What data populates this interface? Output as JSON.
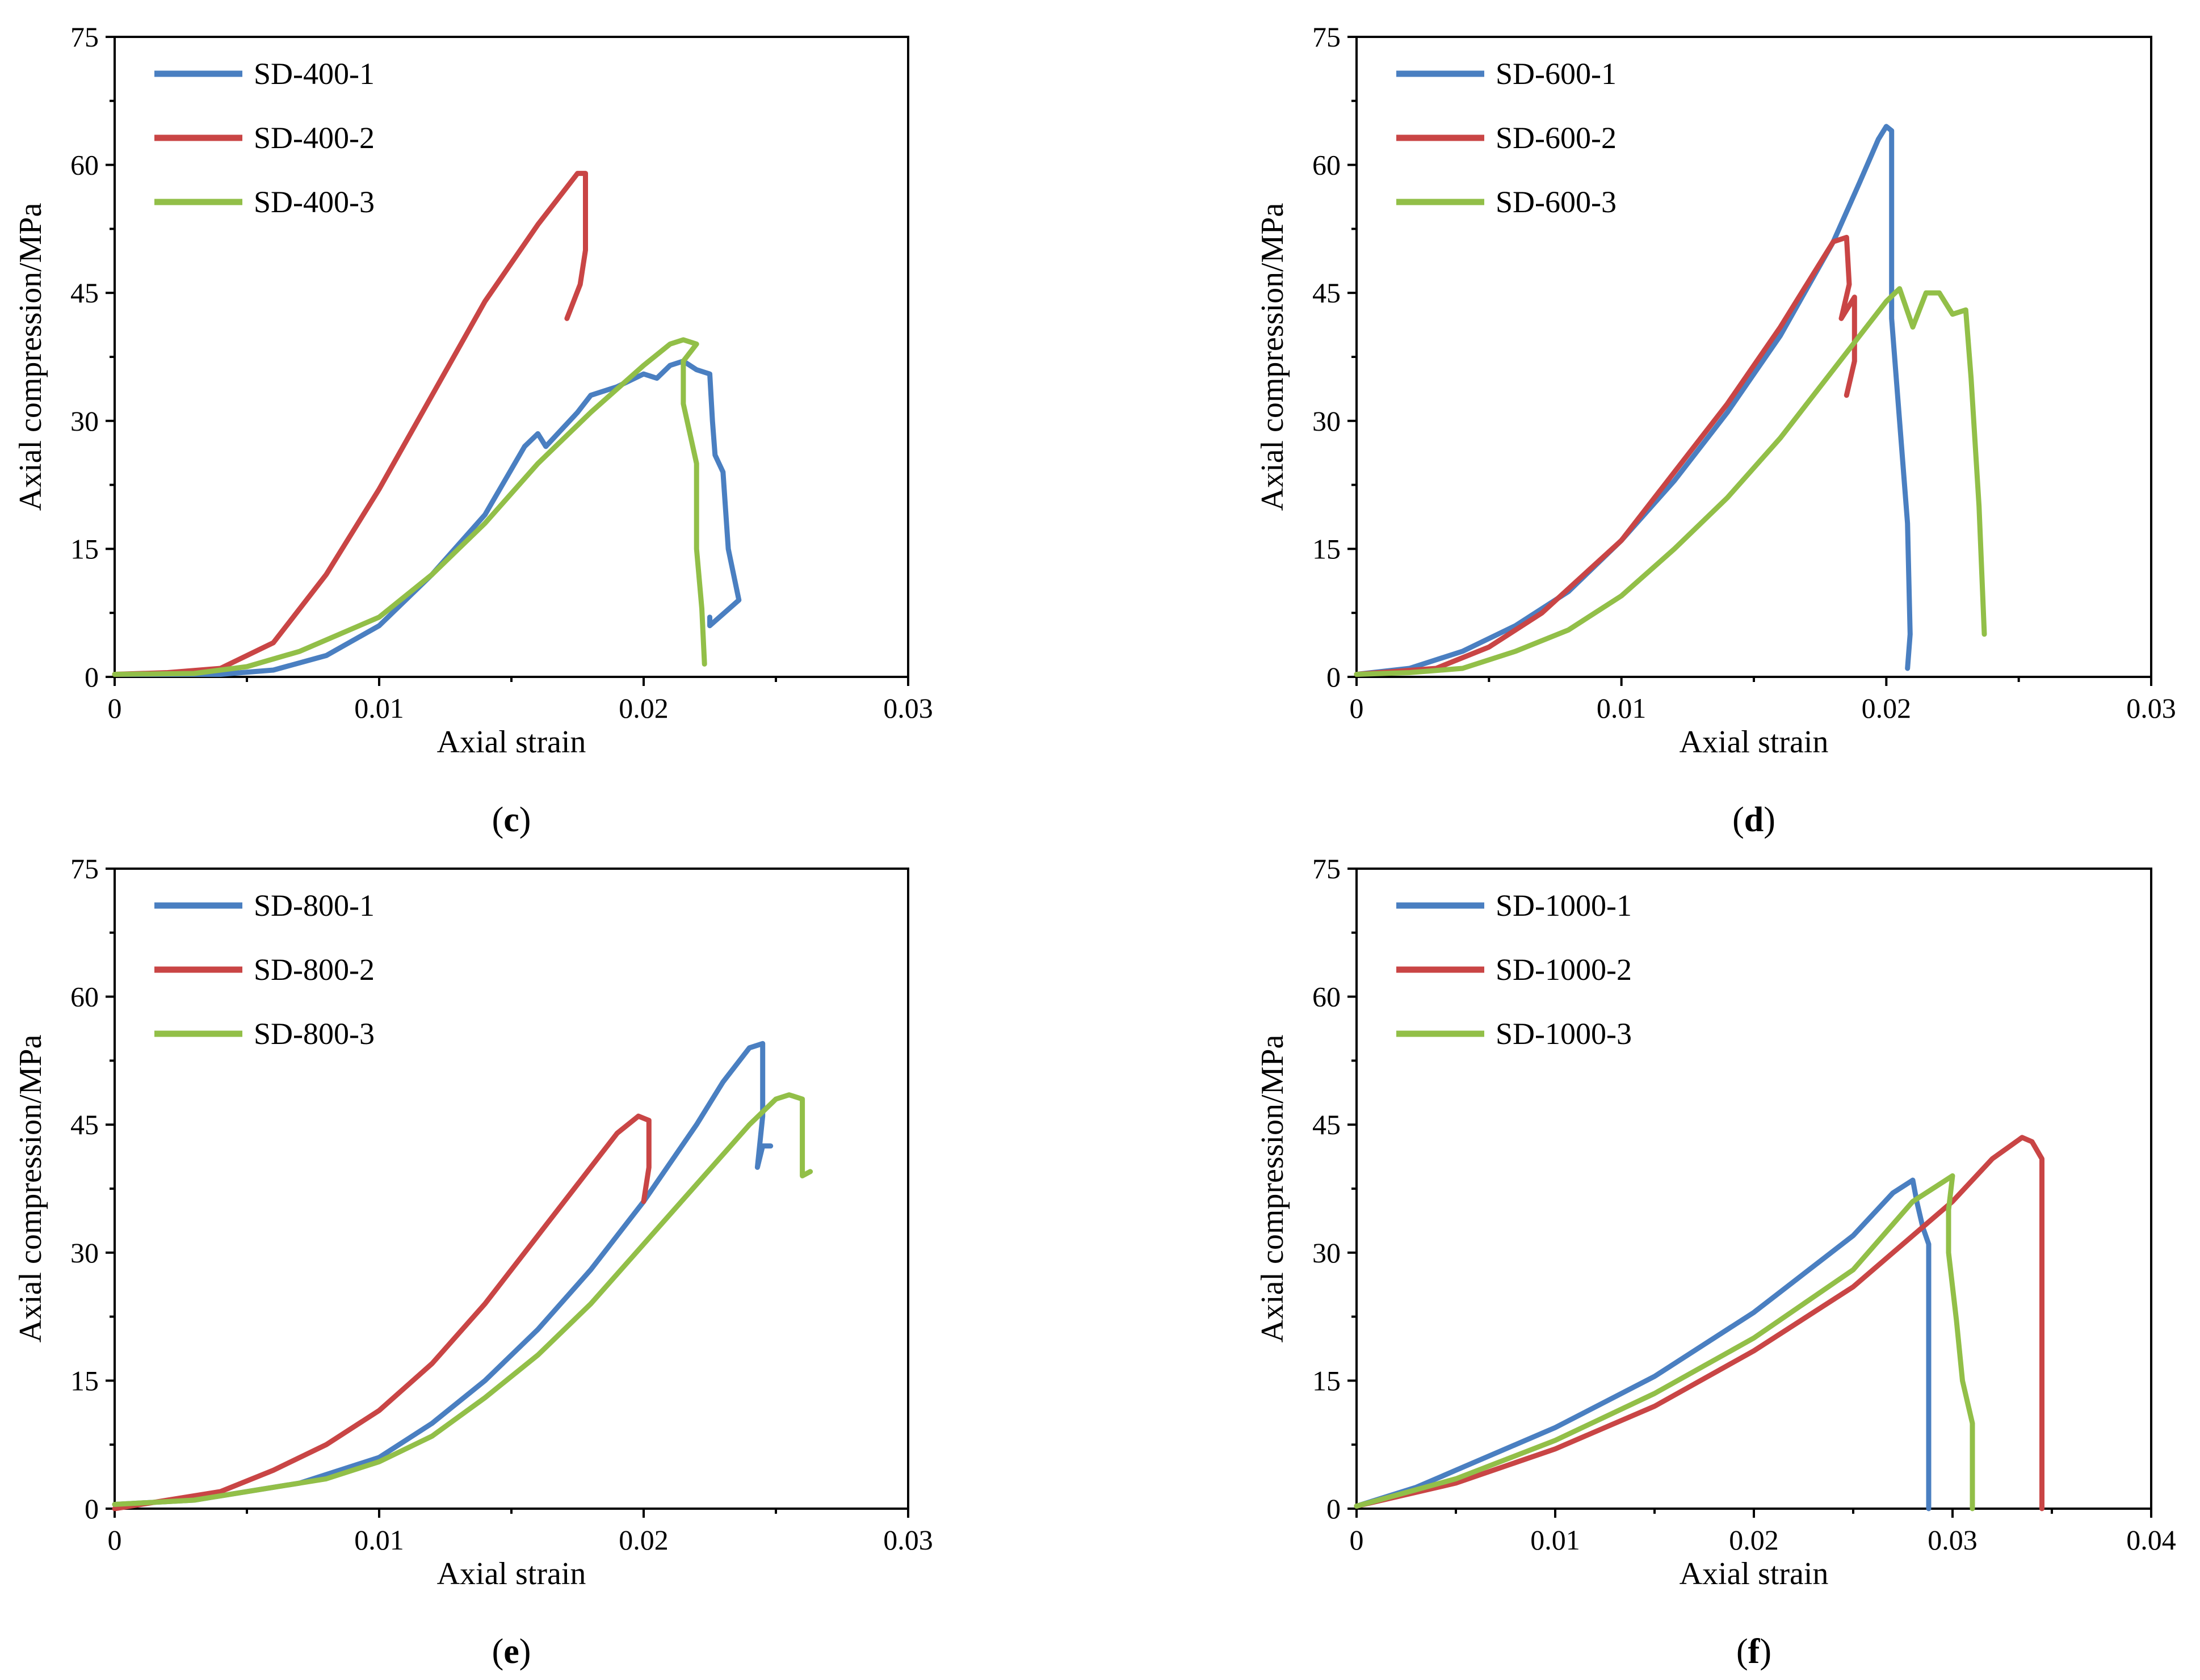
{
  "colors": {
    "series1": "#4a7fc1",
    "series2": "#c94545",
    "series3": "#92bf48",
    "axis": "#000000"
  },
  "chart_data": [
    {
      "type": "line",
      "panel_label": "c",
      "xlabel": "Axial strain",
      "ylabel": "Axial compression/MPa",
      "xlim": [
        0,
        0.03
      ],
      "ylim": [
        0,
        75
      ],
      "xticks": [
        0,
        0.01,
        0.02,
        0.03
      ],
      "xtick_labels": [
        "0",
        "0.01",
        "0.02",
        "0.03"
      ],
      "yticks": [
        0,
        15,
        30,
        45,
        60,
        75
      ],
      "ytick_labels": [
        "0",
        "15",
        "30",
        "45",
        "60",
        "75"
      ],
      "legend_position": "top-left",
      "series": [
        {
          "name": "SD-400-1",
          "color_key": "series1",
          "points": [
            [
              0,
              0.3
            ],
            [
              0.004,
              0.3
            ],
            [
              0.006,
              0.8
            ],
            [
              0.008,
              2.5
            ],
            [
              0.01,
              6
            ],
            [
              0.012,
              12
            ],
            [
              0.014,
              19
            ],
            [
              0.0155,
              27
            ],
            [
              0.016,
              28.5
            ],
            [
              0.0163,
              27
            ],
            [
              0.0175,
              31
            ],
            [
              0.018,
              33
            ],
            [
              0.019,
              34
            ],
            [
              0.02,
              35.5
            ],
            [
              0.0205,
              35
            ],
            [
              0.021,
              36.5
            ],
            [
              0.0215,
              37
            ],
            [
              0.022,
              36
            ],
            [
              0.0225,
              35.5
            ],
            [
              0.0226,
              30
            ],
            [
              0.0227,
              26
            ],
            [
              0.023,
              24
            ],
            [
              0.0232,
              15
            ],
            [
              0.0236,
              9
            ],
            [
              0.0225,
              6
            ],
            [
              0.0225,
              7
            ]
          ]
        },
        {
          "name": "SD-400-2",
          "color_key": "series2",
          "points": [
            [
              0,
              0.3
            ],
            [
              0.002,
              0.5
            ],
            [
              0.004,
              1
            ],
            [
              0.006,
              4
            ],
            [
              0.008,
              12
            ],
            [
              0.01,
              22
            ],
            [
              0.012,
              33
            ],
            [
              0.014,
              44
            ],
            [
              0.016,
              53
            ],
            [
              0.017,
              57
            ],
            [
              0.0175,
              59
            ],
            [
              0.0178,
              59
            ],
            [
              0.0178,
              55
            ],
            [
              0.0178,
              50
            ],
            [
              0.0176,
              46
            ],
            [
              0.0171,
              42
            ]
          ]
        },
        {
          "name": "SD-400-3",
          "color_key": "series3",
          "points": [
            [
              0,
              0.3
            ],
            [
              0.003,
              0.4
            ],
            [
              0.005,
              1.2
            ],
            [
              0.007,
              3
            ],
            [
              0.01,
              7
            ],
            [
              0.012,
              12
            ],
            [
              0.014,
              18
            ],
            [
              0.016,
              25
            ],
            [
              0.018,
              31
            ],
            [
              0.02,
              36.5
            ],
            [
              0.021,
              39
            ],
            [
              0.0215,
              39.5
            ],
            [
              0.022,
              39
            ],
            [
              0.0215,
              37
            ],
            [
              0.0215,
              32
            ],
            [
              0.022,
              25
            ],
            [
              0.022,
              15
            ],
            [
              0.0222,
              8
            ],
            [
              0.0223,
              1.5
            ]
          ]
        }
      ]
    },
    {
      "type": "line",
      "panel_label": "d",
      "xlabel": "Axial strain",
      "ylabel": "Axial compression/MPa",
      "xlim": [
        0,
        0.03
      ],
      "ylim": [
        0,
        75
      ],
      "xticks": [
        0,
        0.01,
        0.02,
        0.03
      ],
      "xtick_labels": [
        "0",
        "0.01",
        "0.02",
        "0.03"
      ],
      "yticks": [
        0,
        15,
        30,
        45,
        60,
        75
      ],
      "ytick_labels": [
        "0",
        "15",
        "30",
        "45",
        "60",
        "75"
      ],
      "legend_position": "top-left",
      "series": [
        {
          "name": "SD-600-1",
          "color_key": "series1",
          "points": [
            [
              0,
              0.3
            ],
            [
              0.002,
              1
            ],
            [
              0.004,
              3
            ],
            [
              0.006,
              6
            ],
            [
              0.008,
              10
            ],
            [
              0.01,
              16
            ],
            [
              0.012,
              23
            ],
            [
              0.014,
              31
            ],
            [
              0.016,
              40
            ],
            [
              0.018,
              51
            ],
            [
              0.019,
              58
            ],
            [
              0.0197,
              63
            ],
            [
              0.02,
              64.5
            ],
            [
              0.0202,
              64
            ],
            [
              0.0202,
              55
            ],
            [
              0.0202,
              42
            ],
            [
              0.0205,
              30
            ],
            [
              0.0208,
              18
            ],
            [
              0.0209,
              5
            ],
            [
              0.0208,
              1
            ]
          ]
        },
        {
          "name": "SD-600-2",
          "color_key": "series2",
          "points": [
            [
              0,
              0.3
            ],
            [
              0.003,
              1
            ],
            [
              0.005,
              3.5
            ],
            [
              0.007,
              7.5
            ],
            [
              0.01,
              16
            ],
            [
              0.012,
              24
            ],
            [
              0.014,
              32
            ],
            [
              0.016,
              41
            ],
            [
              0.017,
              46
            ],
            [
              0.018,
              51
            ],
            [
              0.0185,
              51.5
            ],
            [
              0.0186,
              46
            ],
            [
              0.0183,
              42
            ],
            [
              0.0188,
              44.5
            ],
            [
              0.0188,
              37
            ],
            [
              0.0185,
              33
            ]
          ]
        },
        {
          "name": "SD-600-3",
          "color_key": "series3",
          "points": [
            [
              0,
              0.3
            ],
            [
              0.002,
              0.5
            ],
            [
              0.004,
              1
            ],
            [
              0.006,
              3
            ],
            [
              0.008,
              5.5
            ],
            [
              0.01,
              9.5
            ],
            [
              0.012,
              15
            ],
            [
              0.014,
              21
            ],
            [
              0.016,
              28
            ],
            [
              0.018,
              36
            ],
            [
              0.019,
              40
            ],
            [
              0.02,
              44
            ],
            [
              0.0205,
              45.5
            ],
            [
              0.021,
              41
            ],
            [
              0.0215,
              45
            ],
            [
              0.022,
              45
            ],
            [
              0.0225,
              42.5
            ],
            [
              0.023,
              43
            ],
            [
              0.0232,
              35
            ],
            [
              0.0235,
              20
            ],
            [
              0.0237,
              5
            ]
          ]
        }
      ]
    },
    {
      "type": "line",
      "panel_label": "e",
      "xlabel": "Axial strain",
      "ylabel": "Axial compression/MPa",
      "xlim": [
        0,
        0.03
      ],
      "ylim": [
        0,
        75
      ],
      "xticks": [
        0,
        0.01,
        0.02,
        0.03
      ],
      "xtick_labels": [
        "0",
        "0.01",
        "0.02",
        "0.03"
      ],
      "yticks": [
        0,
        15,
        30,
        45,
        60,
        75
      ],
      "ytick_labels": [
        "0",
        "15",
        "30",
        "45",
        "60",
        "75"
      ],
      "legend_position": "top-left",
      "series": [
        {
          "name": "SD-800-1",
          "color_key": "series1",
          "points": [
            [
              0,
              0.5
            ],
            [
              0.003,
              1
            ],
            [
              0.005,
              2
            ],
            [
              0.007,
              3
            ],
            [
              0.01,
              6
            ],
            [
              0.012,
              10
            ],
            [
              0.014,
              15
            ],
            [
              0.016,
              21
            ],
            [
              0.018,
              28
            ],
            [
              0.02,
              36
            ],
            [
              0.022,
              45
            ],
            [
              0.023,
              50
            ],
            [
              0.024,
              54
            ],
            [
              0.0245,
              54.5
            ],
            [
              0.0245,
              46
            ],
            [
              0.0243,
              40
            ],
            [
              0.0245,
              42.5
            ],
            [
              0.0248,
              42.5
            ]
          ]
        },
        {
          "name": "SD-800-2",
          "color_key": "series2",
          "points": [
            [
              0,
              0
            ],
            [
              0.002,
              1
            ],
            [
              0.004,
              2
            ],
            [
              0.006,
              4.5
            ],
            [
              0.008,
              7.5
            ],
            [
              0.01,
              11.5
            ],
            [
              0.012,
              17
            ],
            [
              0.014,
              24
            ],
            [
              0.016,
              32
            ],
            [
              0.018,
              40
            ],
            [
              0.019,
              44
            ],
            [
              0.0198,
              46
            ],
            [
              0.0202,
              45.5
            ],
            [
              0.0202,
              40
            ],
            [
              0.02,
              36
            ]
          ]
        },
        {
          "name": "SD-800-3",
          "color_key": "series3",
          "points": [
            [
              0,
              0.5
            ],
            [
              0.003,
              1
            ],
            [
              0.006,
              2.5
            ],
            [
              0.008,
              3.5
            ],
            [
              0.01,
              5.5
            ],
            [
              0.012,
              8.5
            ],
            [
              0.014,
              13
            ],
            [
              0.016,
              18
            ],
            [
              0.018,
              24
            ],
            [
              0.02,
              31
            ],
            [
              0.022,
              38
            ],
            [
              0.024,
              45
            ],
            [
              0.025,
              48
            ],
            [
              0.0255,
              48.5
            ],
            [
              0.026,
              48
            ],
            [
              0.026,
              42
            ],
            [
              0.026,
              39
            ],
            [
              0.0263,
              39.5
            ]
          ]
        }
      ]
    },
    {
      "type": "line",
      "panel_label": "f",
      "xlabel": "Axial strain",
      "ylabel": "Axial compression/MPa",
      "xlim": [
        0,
        0.04
      ],
      "ylim": [
        0,
        75
      ],
      "xticks": [
        0,
        0.01,
        0.02,
        0.03,
        0.04
      ],
      "xtick_labels": [
        "0",
        "0.01",
        "0.02",
        "0.03",
        "0.04"
      ],
      "yticks": [
        0,
        15,
        30,
        45,
        60,
        75
      ],
      "ytick_labels": [
        "0",
        "15",
        "30",
        "45",
        "60",
        "75"
      ],
      "legend_position": "top-left",
      "series": [
        {
          "name": "SD-1000-1",
          "color_key": "series1",
          "points": [
            [
              0,
              0.3
            ],
            [
              0.003,
              2.5
            ],
            [
              0.005,
              4.5
            ],
            [
              0.01,
              9.5
            ],
            [
              0.015,
              15.5
            ],
            [
              0.02,
              23
            ],
            [
              0.025,
              32
            ],
            [
              0.027,
              37
            ],
            [
              0.028,
              38.5
            ],
            [
              0.0282,
              36
            ],
            [
              0.0285,
              33
            ],
            [
              0.0288,
              31
            ],
            [
              0.0288,
              20
            ],
            [
              0.0288,
              8
            ],
            [
              0.0288,
              0
            ]
          ]
        },
        {
          "name": "SD-1000-2",
          "color_key": "series2",
          "points": [
            [
              0,
              0.3
            ],
            [
              0.005,
              3
            ],
            [
              0.01,
              7
            ],
            [
              0.015,
              12
            ],
            [
              0.02,
              18.5
            ],
            [
              0.025,
              26
            ],
            [
              0.03,
              36
            ],
            [
              0.032,
              41
            ],
            [
              0.0335,
              43.5
            ],
            [
              0.034,
              43
            ],
            [
              0.0345,
              41
            ],
            [
              0.0345,
              30
            ],
            [
              0.0345,
              15
            ],
            [
              0.0345,
              0
            ]
          ]
        },
        {
          "name": "SD-1000-3",
          "color_key": "series3",
          "points": [
            [
              0,
              0.3
            ],
            [
              0.005,
              3.5
            ],
            [
              0.01,
              8
            ],
            [
              0.015,
              13.5
            ],
            [
              0.02,
              20
            ],
            [
              0.025,
              28
            ],
            [
              0.028,
              36
            ],
            [
              0.03,
              39
            ],
            [
              0.0298,
              35
            ],
            [
              0.0298,
              30
            ],
            [
              0.0302,
              22
            ],
            [
              0.0305,
              15
            ],
            [
              0.031,
              10
            ],
            [
              0.031,
              0
            ]
          ]
        }
      ]
    }
  ]
}
